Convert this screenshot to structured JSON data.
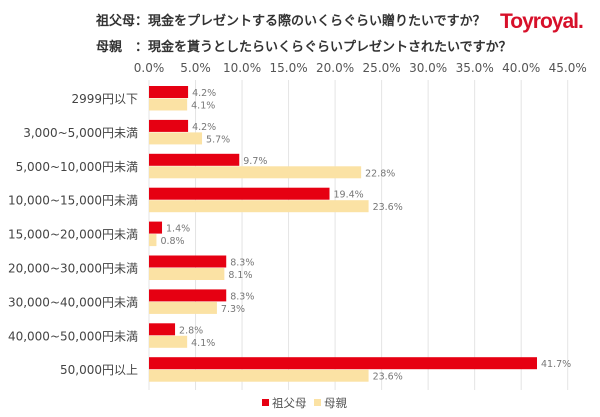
{
  "header": {
    "title_line1": "祖父母：現金をプレゼントする際のいくらぐらい贈りたいですか？",
    "title_line2": "母親　：現金を貰うとしたらいくらぐらいプレゼントされたいですか？",
    "logo": "Toyroyal."
  },
  "chart_data": {
    "type": "bar",
    "orientation": "horizontal",
    "categories": [
      "2999円以下",
      "3,000~5,000円未満",
      "5,000~10,000円未満",
      "10,000~15,000円未満",
      "15,000~20,000円未満",
      "20,000~30,000円未満",
      "30,000~40,000円未満",
      "40,000~50,000円未満",
      "50,000円以上"
    ],
    "series": [
      {
        "name": "祖父母",
        "color": "#e60012",
        "values": [
          4.2,
          4.2,
          9.7,
          19.4,
          1.4,
          8.3,
          8.3,
          2.8,
          41.7
        ],
        "labels": [
          "4.2%",
          "4.2%",
          "9.7%",
          "19.4%",
          "1.4%",
          "8.3%",
          "8.3%",
          "2.8%",
          "41.7%"
        ]
      },
      {
        "name": "母親",
        "color": "#fbe2a4",
        "values": [
          4.1,
          5.7,
          22.8,
          23.6,
          0.8,
          8.1,
          7.3,
          4.1,
          23.6
        ],
        "labels": [
          "4.1%",
          "5.7%",
          "22.8%",
          "23.6%",
          "0.8%",
          "8.1%",
          "7.3%",
          "4.1%",
          "23.6%"
        ]
      }
    ],
    "xlim": [
      0,
      45
    ],
    "xticks": [
      "0.0%",
      "5.0%",
      "10.0%",
      "15.0%",
      "20.0%",
      "25.0%",
      "30.0%",
      "35.0%",
      "40.0%",
      "45.0%"
    ],
    "grid": true,
    "legend": "bottom",
    "xaxis_position": "top"
  }
}
